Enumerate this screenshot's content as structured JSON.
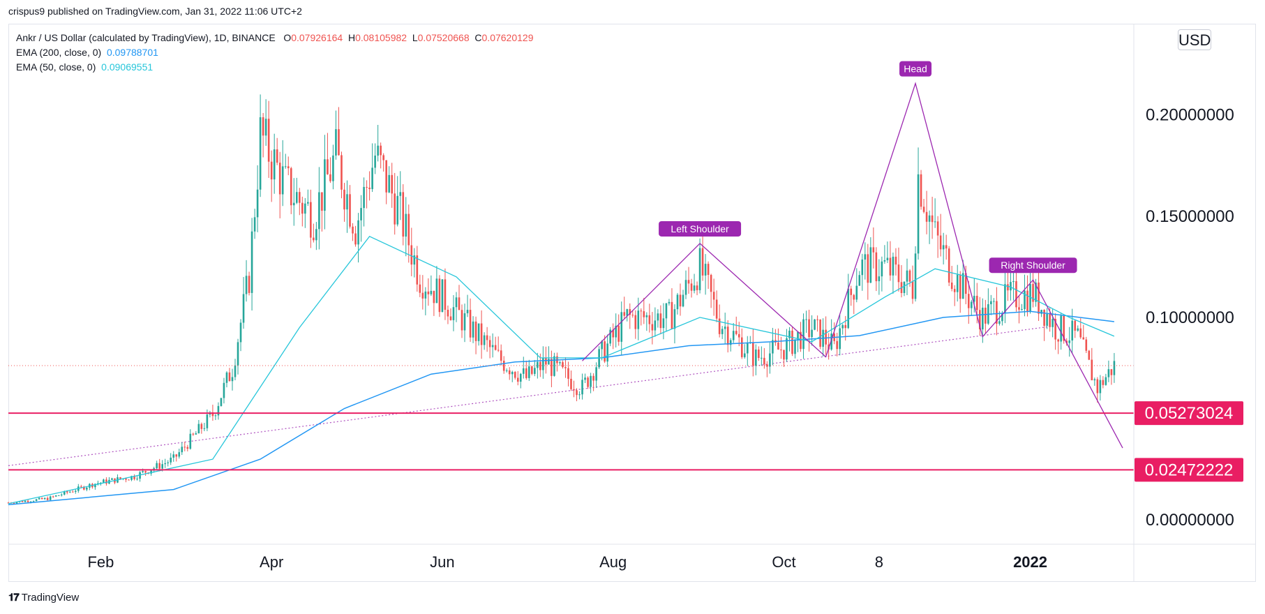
{
  "caption": "crispus9 published on TradingView.com, Jan 31, 2022 11:06 UTC+2",
  "legend": {
    "symbol_line": "Ankr / US Dollar (calculated by TradingView), 1D, BINANCE",
    "o_label": "O",
    "o": "0.07926164",
    "h_label": "H",
    "h": "0.08105982",
    "l_label": "L",
    "l": "0.07520668",
    "c_label": "C",
    "c": "0.07620129",
    "ema200_label": "EMA (200, close, 0)",
    "ema200": "0.09788701",
    "ema50_label": "EMA (50, close, 0)",
    "ema50": "0.09069551"
  },
  "currency_button": "USD",
  "logo_text": "TradingView",
  "colors": {
    "up": "#26a69a",
    "down": "#ef5350",
    "ema200": "#2196f3",
    "ema50": "#26c6da",
    "pattern": "#9c27b0",
    "level": "#e91e63",
    "label_bg": "#9c27b0"
  },
  "chart_data": {
    "type": "candlestick",
    "y_ticks": [
      "0.20000000",
      "0.15000000",
      "0.10000000",
      "0.00000000"
    ],
    "x_ticks": [
      "Feb",
      "Apr",
      "Jun",
      "Aug",
      "Oct",
      "8",
      "2022"
    ],
    "ylim": [
      -0.012,
      0.245
    ],
    "horizontal_levels": [
      {
        "value": 0.05273024,
        "label": "0.05273024"
      },
      {
        "value": 0.02472222,
        "label": "0.02472222"
      }
    ],
    "current_price": 0.0762,
    "annotations": [
      {
        "text": "Left Shoulder",
        "date": "2021-09-05",
        "price": 0.1365
      },
      {
        "text": "Head",
        "date": "2021-11-21",
        "price": 0.2155
      },
      {
        "text": "Right Shoulder",
        "date": "2022-01-02",
        "price": 0.1185
      }
    ],
    "pattern_line": [
      {
        "date": "2021-07-25",
        "price": 0.0785
      },
      {
        "date": "2021-09-05",
        "price": 0.1365
      },
      {
        "date": "2021-10-20",
        "price": 0.0805
      },
      {
        "date": "2021-11-21",
        "price": 0.2155
      },
      {
        "date": "2021-12-15",
        "price": 0.0905
      },
      {
        "date": "2022-01-02",
        "price": 0.1185
      },
      {
        "date": "2022-02-03",
        "price": 0.0355
      }
    ],
    "trendline": [
      {
        "date": "2021-01-01",
        "price": 0.0268
      },
      {
        "date": "2022-01-08",
        "price": 0.0955
      }
    ],
    "close_series": [
      [
        "2021-01-01",
        0.0085
      ],
      [
        "2021-01-15",
        0.0105
      ],
      [
        "2021-02-01",
        0.018
      ],
      [
        "2021-02-15",
        0.0215
      ],
      [
        "2021-03-01",
        0.03
      ],
      [
        "2021-03-15",
        0.052
      ],
      [
        "2021-03-22",
        0.075
      ],
      [
        "2021-03-28",
        0.12
      ],
      [
        "2021-04-01",
        0.19
      ],
      [
        "2021-04-10",
        0.165
      ],
      [
        "2021-04-20",
        0.15
      ],
      [
        "2021-04-28",
        0.18
      ],
      [
        "2021-05-05",
        0.145
      ],
      [
        "2021-05-12",
        0.18
      ],
      [
        "2021-05-20",
        0.155
      ],
      [
        "2021-05-28",
        0.12
      ],
      [
        "2021-06-05",
        0.11
      ],
      [
        "2021-06-15",
        0.095
      ],
      [
        "2021-06-25",
        0.08
      ],
      [
        "2021-07-05",
        0.07
      ],
      [
        "2021-07-12",
        0.078
      ],
      [
        "2021-07-25",
        0.065
      ],
      [
        "2021-08-01",
        0.082
      ],
      [
        "2021-08-10",
        0.1
      ],
      [
        "2021-08-25",
        0.1
      ],
      [
        "2021-09-05",
        0.125
      ],
      [
        "2021-09-12",
        0.098
      ],
      [
        "2021-09-25",
        0.08
      ],
      [
        "2021-10-05",
        0.085
      ],
      [
        "2021-10-15",
        0.095
      ],
      [
        "2021-10-23",
        0.085
      ],
      [
        "2021-11-01",
        0.125
      ],
      [
        "2021-11-10",
        0.125
      ],
      [
        "2021-11-20",
        0.115
      ],
      [
        "2021-11-22",
        0.17
      ],
      [
        "2021-11-28",
        0.14
      ],
      [
        "2021-12-05",
        0.12
      ],
      [
        "2021-12-15",
        0.1
      ],
      [
        "2021-12-25",
        0.11
      ],
      [
        "2022-01-02",
        0.112
      ],
      [
        "2022-01-10",
        0.095
      ],
      [
        "2022-01-18",
        0.09
      ],
      [
        "2022-01-25",
        0.065
      ],
      [
        "2022-01-31",
        0.0762
      ]
    ],
    "ema200_series": [
      [
        "2021-01-01",
        0.0075
      ],
      [
        "2021-03-01",
        0.015
      ],
      [
        "2021-04-01",
        0.03
      ],
      [
        "2021-05-01",
        0.055
      ],
      [
        "2021-06-01",
        0.072
      ],
      [
        "2021-07-01",
        0.078
      ],
      [
        "2021-08-01",
        0.08
      ],
      [
        "2021-09-01",
        0.086
      ],
      [
        "2021-10-01",
        0.088
      ],
      [
        "2021-11-01",
        0.091
      ],
      [
        "2021-12-01",
        0.1
      ],
      [
        "2022-01-01",
        0.103
      ],
      [
        "2022-01-31",
        0.0979
      ]
    ],
    "ema50_series": [
      [
        "2021-01-01",
        0.008
      ],
      [
        "2021-03-15",
        0.03
      ],
      [
        "2021-04-15",
        0.095
      ],
      [
        "2021-05-10",
        0.14
      ],
      [
        "2021-06-10",
        0.12
      ],
      [
        "2021-07-10",
        0.08
      ],
      [
        "2021-08-01",
        0.08
      ],
      [
        "2021-09-05",
        0.1
      ],
      [
        "2021-10-15",
        0.088
      ],
      [
        "2021-11-10",
        0.11
      ],
      [
        "2021-11-28",
        0.124
      ],
      [
        "2021-12-25",
        0.115
      ],
      [
        "2022-01-15",
        0.1
      ],
      [
        "2022-01-31",
        0.0907
      ]
    ]
  }
}
